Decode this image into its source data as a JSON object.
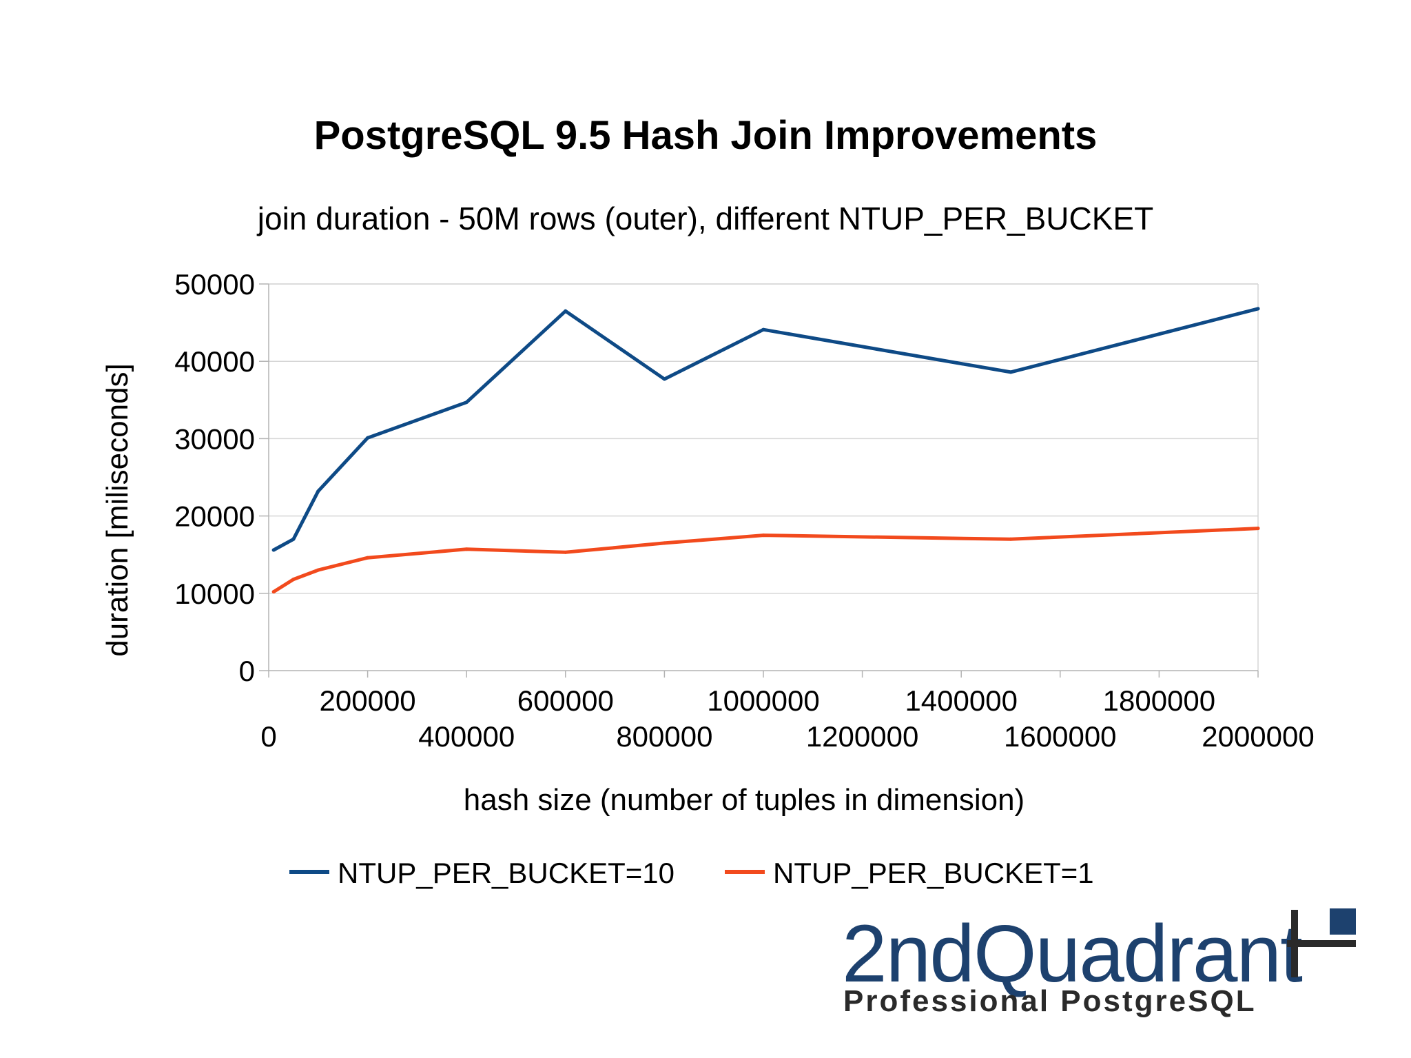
{
  "chart_data": {
    "type": "line",
    "title": "PostgreSQL 9.5 Hash Join Improvements",
    "subtitle": "join duration - 50M rows (outer), different NTUP_PER_BUCKET",
    "xlabel": "hash size (number of tuples in dimension)",
    "ylabel": "duration [miliseconds]",
    "xlim": [
      0,
      2000000
    ],
    "ylim": [
      0,
      50000
    ],
    "x_ticks_upper": [
      "200000",
      "600000",
      "1000000",
      "1400000",
      "1800000"
    ],
    "x_ticks_lower": [
      "0",
      "400000",
      "800000",
      "1200000",
      "1600000",
      "2000000"
    ],
    "y_ticks": [
      "0",
      "10000",
      "20000",
      "30000",
      "40000",
      "50000"
    ],
    "grid": true,
    "legend_position": "bottom",
    "series": [
      {
        "name": "NTUP_PER_BUCKET=10",
        "color": "#0e4a86",
        "x": [
          10000,
          50000,
          100000,
          200000,
          400000,
          600000,
          800000,
          1000000,
          1500000,
          2000000
        ],
        "y": [
          15600,
          17000,
          23200,
          30100,
          34700,
          46500,
          37700,
          44100,
          38600,
          46800
        ]
      },
      {
        "name": "NTUP_PER_BUCKET=1",
        "color": "#f24a1d",
        "x": [
          10000,
          50000,
          100000,
          200000,
          400000,
          600000,
          800000,
          1000000,
          1500000,
          2000000
        ],
        "y": [
          10200,
          11800,
          13000,
          14600,
          15700,
          15300,
          16500,
          17500,
          17000,
          18400
        ]
      }
    ]
  },
  "logo": {
    "name": "2ndQuadrant",
    "tagline": "Professional PostgreSQL"
  }
}
